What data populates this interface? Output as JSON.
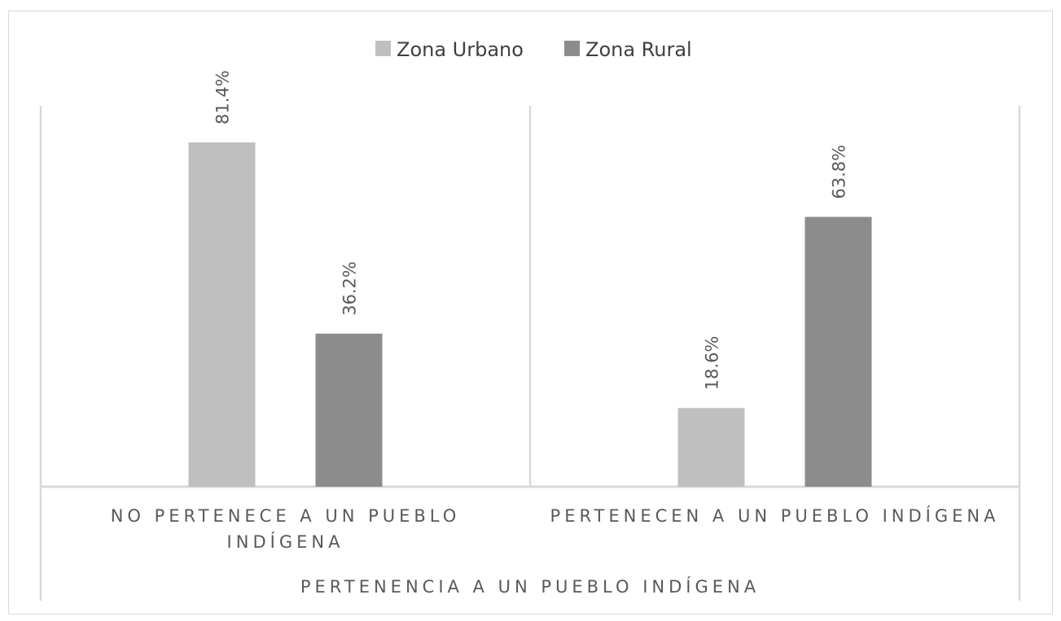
{
  "chart_data": {
    "type": "bar",
    "categories": [
      [
        "NO PERTENECE A UN PUEBLO",
        "INDÍGENA"
      ],
      [
        "PERTENECEN A UN PUEBLO INDÍGENA"
      ]
    ],
    "series": [
      {
        "name": "Zona Urbano",
        "values": [
          81.4,
          18.6
        ],
        "labels": [
          "81.4%",
          "18.6%"
        ],
        "color": "#bfbfbf"
      },
      {
        "name": "Zona Rural",
        "values": [
          36.2,
          63.8
        ],
        "labels": [
          "36.2%",
          "63.8%"
        ],
        "color": "#8c8c8c"
      }
    ],
    "title": "",
    "xlabel": "PERTENENCIA A UN PUEBLO INDÍGENA",
    "ylabel": "",
    "ylim": [
      0,
      90
    ],
    "grid": false,
    "legend_position": "top"
  },
  "colors": {
    "axis": "#d9d9d9",
    "text": "#595959",
    "legend_text": "#404040"
  }
}
